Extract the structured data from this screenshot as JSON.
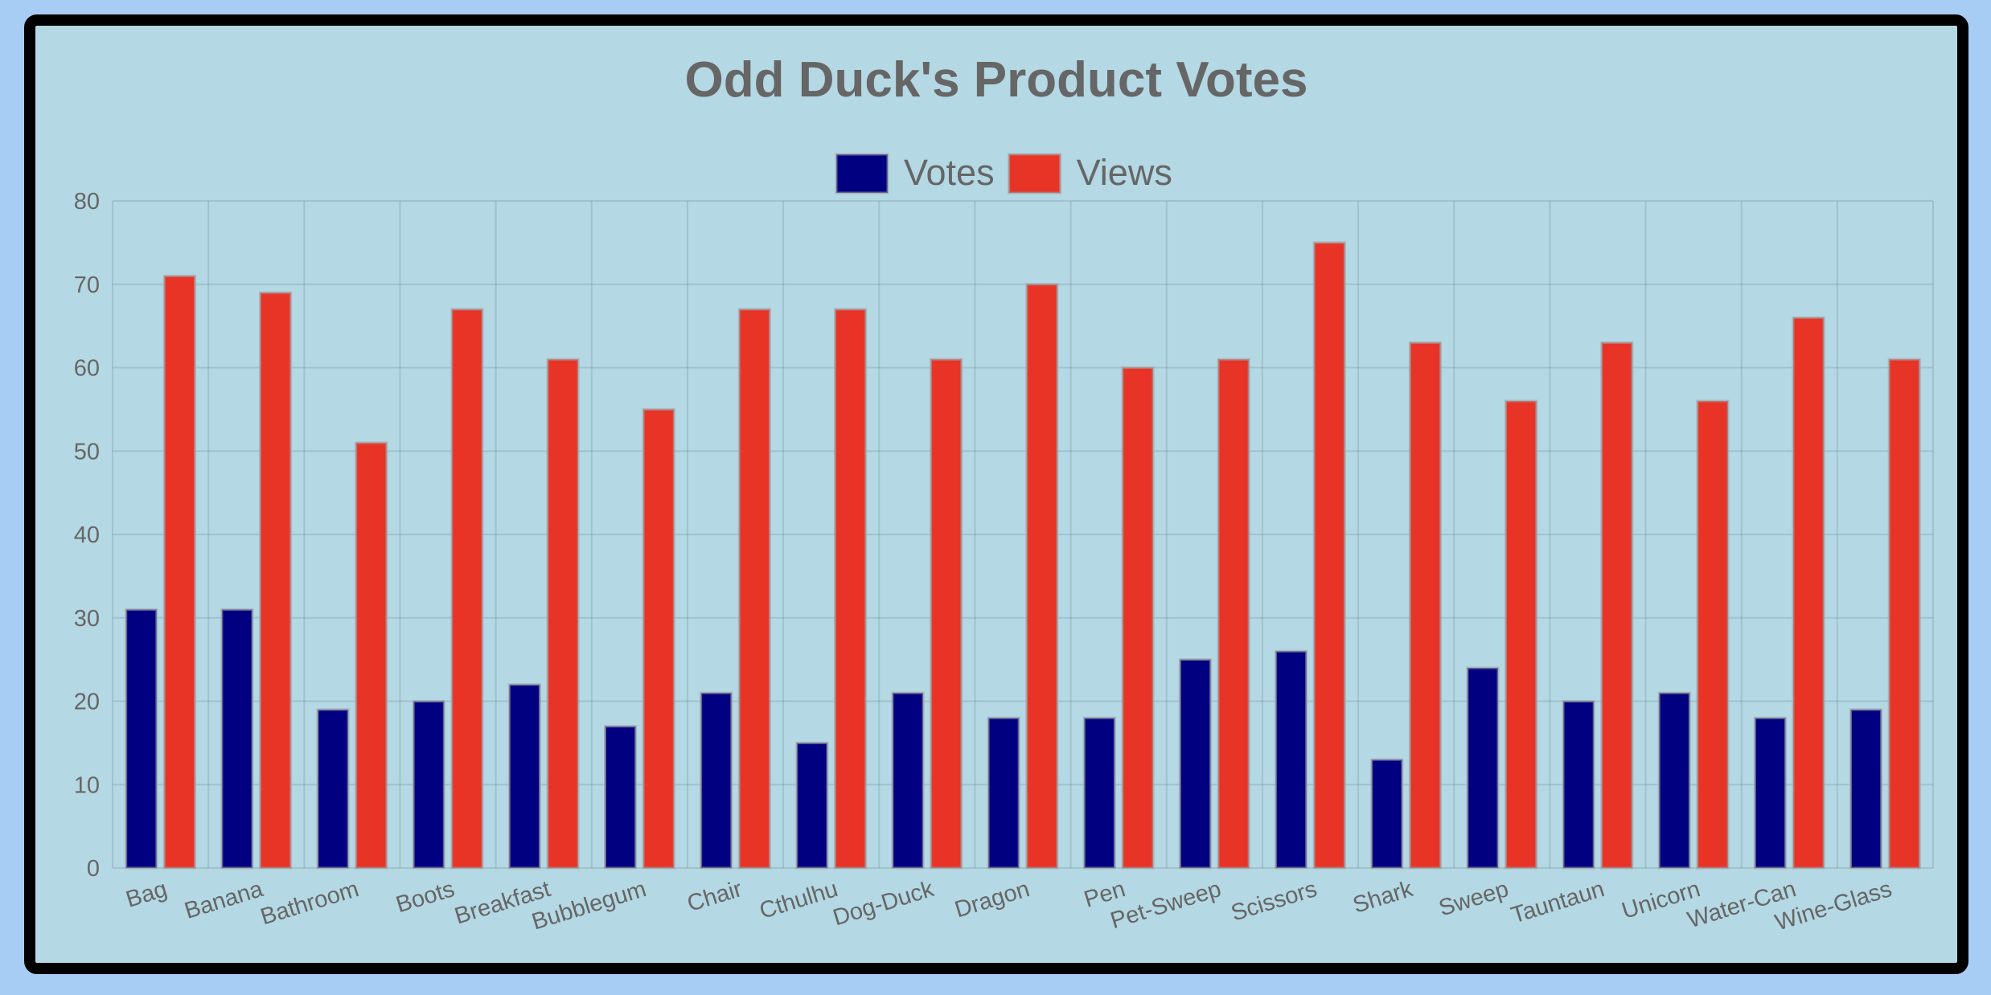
{
  "chart_data": {
    "type": "bar",
    "title": "Odd Duck's Product Votes",
    "categories": [
      "Bag",
      "Banana",
      "Bathroom",
      "Boots",
      "Breakfast",
      "Bubblegum",
      "Chair",
      "Cthulhu",
      "Dog-Duck",
      "Dragon",
      "Pen",
      "Pet-Sweep",
      "Scissors",
      "Shark",
      "Sweep",
      "Tauntaun",
      "Unicorn",
      "Water-Can",
      "Wine-Glass"
    ],
    "series": [
      {
        "name": "Votes",
        "color": "#000080",
        "values": [
          31,
          31,
          19,
          20,
          22,
          17,
          21,
          15,
          21,
          18,
          18,
          25,
          26,
          13,
          24,
          20,
          21,
          18,
          19
        ]
      },
      {
        "name": "Views",
        "color": "#e83327",
        "values": [
          71,
          69,
          51,
          67,
          61,
          55,
          67,
          67,
          61,
          70,
          60,
          61,
          75,
          63,
          56,
          63,
          56,
          66,
          61
        ]
      }
    ],
    "ylim": [
      0,
      80
    ],
    "yticks": [
      0,
      10,
      20,
      30,
      40,
      50,
      60,
      70,
      80
    ],
    "legend_position": "top",
    "grid": true,
    "x_tick_rotation": "rotated"
  }
}
